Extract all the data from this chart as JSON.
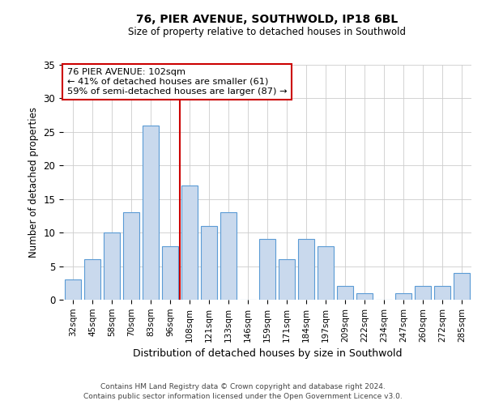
{
  "title": "76, PIER AVENUE, SOUTHWOLD, IP18 6BL",
  "subtitle": "Size of property relative to detached houses in Southwold",
  "xlabel": "Distribution of detached houses by size in Southwold",
  "ylabel": "Number of detached properties",
  "bar_labels": [
    "32sqm",
    "45sqm",
    "58sqm",
    "70sqm",
    "83sqm",
    "96sqm",
    "108sqm",
    "121sqm",
    "133sqm",
    "146sqm",
    "159sqm",
    "171sqm",
    "184sqm",
    "197sqm",
    "209sqm",
    "222sqm",
    "234sqm",
    "247sqm",
    "260sqm",
    "272sqm",
    "285sqm"
  ],
  "bar_values": [
    3,
    6,
    10,
    13,
    26,
    8,
    17,
    11,
    13,
    0,
    9,
    6,
    9,
    8,
    2,
    1,
    0,
    1,
    2,
    2,
    4
  ],
  "bar_color": "#c9d9ed",
  "bar_edge_color": "#5b9bd5",
  "reference_line_x": 5.5,
  "reference_line_color": "#cc0000",
  "annotation_title": "76 PIER AVENUE: 102sqm",
  "annotation_line1": "← 41% of detached houses are smaller (61)",
  "annotation_line2": "59% of semi-detached houses are larger (87) →",
  "annotation_box_color": "#ffffff",
  "annotation_box_edge": "#cc0000",
  "ylim": [
    0,
    35
  ],
  "yticks": [
    0,
    5,
    10,
    15,
    20,
    25,
    30,
    35
  ],
  "footer1": "Contains HM Land Registry data © Crown copyright and database right 2024.",
  "footer2": "Contains public sector information licensed under the Open Government Licence v3.0.",
  "bg_color": "#ffffff",
  "grid_color": "#cccccc"
}
